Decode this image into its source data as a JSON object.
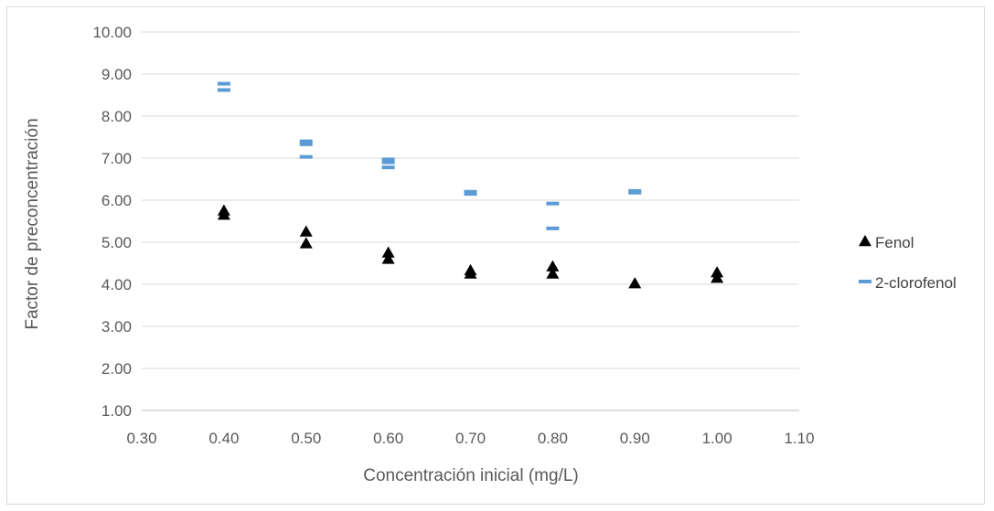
{
  "chart_data": {
    "type": "scatter",
    "title": "",
    "xlabel": "Concentración inicial (mg/L)",
    "ylabel": "Factor de preconcentración",
    "xlim": [
      0.3,
      1.1
    ],
    "ylim": [
      1.0,
      10.0
    ],
    "x_ticks": [
      "0.30",
      "0.40",
      "0.50",
      "0.60",
      "0.70",
      "0.80",
      "0.90",
      "1.00",
      "1.10"
    ],
    "y_ticks": [
      "1.00",
      "2.00",
      "3.00",
      "4.00",
      "5.00",
      "6.00",
      "7.00",
      "8.00",
      "9.00",
      "10.00"
    ],
    "grid": "horizontal",
    "legend_position": "right",
    "series": [
      {
        "name": "Fenol",
        "marker": "triangle",
        "color": "#000000",
        "points": [
          [
            0.4,
            5.65
          ],
          [
            0.4,
            5.75
          ],
          [
            0.5,
            4.97
          ],
          [
            0.5,
            5.25
          ],
          [
            0.6,
            4.6
          ],
          [
            0.6,
            4.75
          ],
          [
            0.7,
            4.25
          ],
          [
            0.7,
            4.33
          ],
          [
            0.8,
            4.25
          ],
          [
            0.8,
            4.42
          ],
          [
            0.9,
            4.02
          ],
          [
            1.0,
            4.15
          ],
          [
            1.0,
            4.28
          ]
        ]
      },
      {
        "name": "2-clorofenol",
        "marker": "dash",
        "color": "#5b9bd5",
        "points": [
          [
            0.4,
            8.62
          ],
          [
            0.4,
            8.77
          ],
          [
            0.5,
            7.03
          ],
          [
            0.5,
            7.33
          ],
          [
            0.5,
            7.4
          ],
          [
            0.6,
            6.78
          ],
          [
            0.6,
            6.9
          ],
          [
            0.6,
            6.97
          ],
          [
            0.7,
            6.15
          ],
          [
            0.7,
            6.2
          ],
          [
            0.8,
            5.33
          ],
          [
            0.8,
            5.92
          ],
          [
            0.9,
            6.18
          ],
          [
            0.9,
            6.22
          ]
        ]
      }
    ]
  }
}
